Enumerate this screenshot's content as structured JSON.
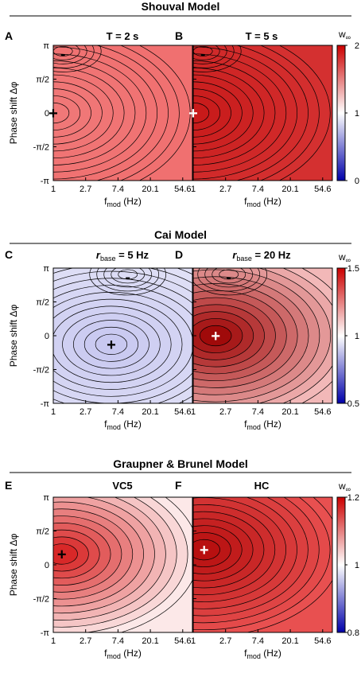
{
  "sections": [
    {
      "title": "Shouval Model"
    },
    {
      "title": "Cai Model"
    },
    {
      "title": "Graupner & Brunel Model"
    }
  ],
  "panels": [
    {
      "letter": "A",
      "title": "T = 2 s",
      "plus": [
        1.0,
        0.0
      ],
      "minus": [
        1.35,
        2.72
      ],
      "low": "#f07878",
      "high": "#f07070",
      "marker_color": "#000000"
    },
    {
      "letter": "B",
      "title": "T = 5 s",
      "plus": [
        1.0,
        0.0
      ],
      "minus": [
        1.35,
        2.72
      ],
      "low": "#c81a1a",
      "high": "#d43030",
      "marker_color": "#ffffff"
    },
    {
      "letter": "C",
      "title_prefix": "r",
      "title_sub": "base",
      "title_suffix": " = 5 Hz",
      "plus": [
        6.0,
        -0.4
      ],
      "minus": [
        10.0,
        2.7
      ],
      "low": "#c8c8f0",
      "high": "#e0e0f6",
      "marker_color": "#000000"
    },
    {
      "letter": "D",
      "title_prefix": "r",
      "title_sub": "base",
      "title_suffix": " = 20 Hz",
      "plus": [
        2.0,
        0.0
      ],
      "minus": [
        3.0,
        2.7
      ],
      "low": "#a00a0a",
      "high": "#f2b8b8",
      "marker_color": "#ffffff"
    },
    {
      "letter": "E",
      "title": "VC5",
      "plus": [
        1.3,
        0.5
      ],
      "minus": null,
      "low": "#d82828",
      "high": "#fce8e8",
      "marker_color": "#000000"
    },
    {
      "letter": "F",
      "title": "HC",
      "plus": [
        1.4,
        0.7
      ],
      "minus": null,
      "low": "#b81010",
      "high": "#e85050",
      "marker_color": "#ffffff"
    }
  ],
  "axes": {
    "ylabel": "Phase shift Δφ",
    "xlabel_main": "f",
    "xlabel_sub": "mod",
    "xlabel_unit": " (Hz)",
    "xticks": [
      "1",
      "2.7",
      "7.4",
      "20.1",
      "54.6"
    ],
    "yticks": [
      "π",
      "π/2",
      "0",
      "-π/2",
      "-π"
    ]
  },
  "colorbars": [
    {
      "label": "w",
      "label_sub": "∞",
      "ticks": [
        "2",
        "1",
        "0"
      ],
      "top": "#cc0000",
      "mid": "#ffffff",
      "bottom": "#0000aa"
    },
    {
      "label": "w",
      "label_sub": "∞",
      "ticks": [
        "1.5",
        "1",
        "0.5"
      ],
      "top": "#cc0000",
      "mid": "#ffffff",
      "bottom": "#0000aa"
    },
    {
      "label": "w",
      "label_sub": "∞",
      "ticks": [
        "1.2",
        "1",
        "0.8"
      ],
      "top": "#cc0000",
      "mid": "#ffffff",
      "bottom": "#0000aa"
    }
  ],
  "markers": {
    "plus": "+",
    "minus": "-"
  }
}
